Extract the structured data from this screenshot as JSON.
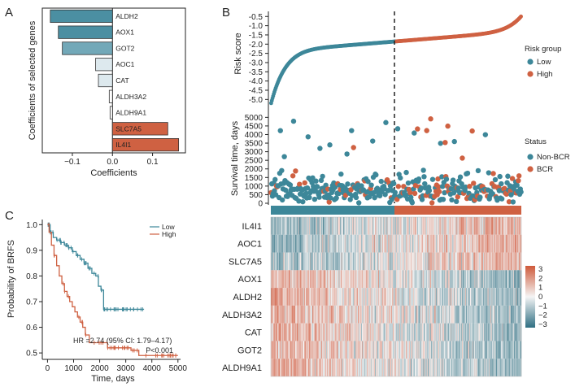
{
  "figure": {
    "panel_labels": [
      "A",
      "B",
      "C"
    ],
    "colors": {
      "low": "#3d8799",
      "high": "#cf6142",
      "bar_dark_teal": "#4b8fa2",
      "bar_mid_teal": "#72a8b8",
      "bar_light": "#dde9ee",
      "bar_white": "#ffffff",
      "axis": "#222222",
      "heat_low": "#2f6f82",
      "heat_mid": "#f4f4f4",
      "heat_high": "#d0573a"
    }
  },
  "chart_data": [
    {
      "id": "A",
      "type": "bar",
      "orientation": "horizontal",
      "categories": [
        "ALDH2",
        "AOX1",
        "GOT2",
        "AOC1",
        "CAT",
        "ALDH3A2",
        "ALDH9A1",
        "SLC7A5",
        "IL4I1"
      ],
      "values": [
        -0.155,
        -0.135,
        -0.125,
        -0.042,
        -0.035,
        -0.008,
        -0.006,
        0.138,
        0.165
      ],
      "fills": [
        "dark_teal",
        "dark_teal",
        "mid_teal",
        "light",
        "light",
        "white",
        "white",
        "high",
        "high"
      ],
      "xlabel": "Coefficients",
      "ylabel": "Coefficients of selected genes",
      "xticks": [
        -0.1,
        0.0,
        0.1
      ],
      "xtick_labels": [
        "−0.1",
        "0.0",
        "0.1"
      ],
      "xlim": [
        -0.175,
        0.182
      ]
    },
    {
      "id": "B-risk",
      "type": "scatter",
      "ylabel": "Risk score",
      "yticks": [
        -0.5,
        -1.0,
        -1.5,
        -2.0,
        -2.5,
        -3.0,
        -3.5,
        -4.0,
        -4.5,
        -5.0
      ],
      "ytick_labels": [
        "-0.5",
        "-1.0",
        "-1.5",
        "-2.0",
        "-2.5",
        "-3.0",
        "-3.5",
        "-4.0",
        "-4.5",
        "-5.0"
      ],
      "ylim": [
        -5.25,
        -0.4
      ],
      "n_samples": 380,
      "cutoff_index": 190,
      "cutoff_value": -1.85,
      "first_value": -5.2,
      "last_value": -0.5,
      "legend_title": "Risk group",
      "legend": [
        "Low",
        "High"
      ]
    },
    {
      "id": "B-survival",
      "type": "scatter",
      "ylabel": "Survival time, days",
      "yticks": [
        0,
        500,
        1000,
        1500,
        2000,
        2500,
        3000,
        3500,
        4000,
        4500,
        5000
      ],
      "ytick_labels": [
        "0",
        "500",
        "1000",
        "1500",
        "2000",
        "2500",
        "3000",
        "3500",
        "4000",
        "4500",
        "5000"
      ],
      "ylim": [
        0,
        5300
      ],
      "legend_title": "Status",
      "legend": [
        "Non-BCR",
        "BCR"
      ]
    },
    {
      "id": "B-heatmap",
      "type": "heatmap",
      "rows": [
        "IL4I1",
        "AOC1",
        "SLC7A5",
        "AOX1",
        "ALDH2",
        "ALDH3A2",
        "CAT",
        "GOT2",
        "ALDH9A1"
      ],
      "row_trend": [
        1,
        1,
        1,
        -1,
        -1,
        -1,
        -1,
        -1,
        -1
      ],
      "n_columns": 380,
      "colorbar_ticks": [
        3,
        2,
        1,
        0,
        -1,
        -2,
        -3
      ],
      "colorbar_labels": [
        "3",
        "2",
        "1",
        "0",
        "−1",
        "−2",
        "−3"
      ],
      "value_range": [
        -3,
        3
      ]
    },
    {
      "id": "C",
      "type": "line",
      "xlabel": "Time, days",
      "ylabel": "Probability of BRFS",
      "xticks": [
        0,
        1000,
        2000,
        3000,
        4000,
        5000
      ],
      "xtick_labels": [
        "0",
        "1000",
        "2000",
        "3000",
        "4000",
        "5000"
      ],
      "yticks": [
        0.5,
        0.6,
        0.7,
        0.8,
        0.9,
        1.0
      ],
      "ytick_labels": [
        "0.5",
        "0.6",
        "0.7",
        "0.8",
        "0.9",
        "1.0"
      ],
      "xlim": [
        -200,
        5100
      ],
      "ylim": [
        0.475,
        1.02
      ],
      "series": [
        {
          "name": "Low",
          "color_key": "low",
          "x": [
            0,
            100,
            220,
            350,
            500,
            650,
            800,
            950,
            1100,
            1250,
            1400,
            1550,
            1700,
            1850,
            1950,
            2050,
            2150,
            3700
          ],
          "y": [
            1.0,
            0.97,
            0.95,
            0.94,
            0.93,
            0.92,
            0.91,
            0.895,
            0.88,
            0.865,
            0.85,
            0.83,
            0.81,
            0.8,
            0.76,
            0.745,
            0.67,
            0.67
          ]
        },
        {
          "name": "High",
          "color_key": "high",
          "x": [
            0,
            60,
            150,
            250,
            350,
            450,
            550,
            650,
            750,
            850,
            950,
            1050,
            1150,
            1250,
            1350,
            1450,
            1600,
            2300,
            3200,
            3500,
            5000
          ],
          "y": [
            1.0,
            0.97,
            0.92,
            0.88,
            0.84,
            0.8,
            0.77,
            0.74,
            0.72,
            0.7,
            0.68,
            0.66,
            0.64,
            0.62,
            0.6,
            0.57,
            0.54,
            0.52,
            0.51,
            0.49,
            0.49
          ]
        }
      ],
      "annotation_hr": "HR =2.74 (95% CI: 1.79–4.17)",
      "annotation_p": "P<0.001",
      "legend": [
        "Low",
        "High"
      ]
    }
  ]
}
